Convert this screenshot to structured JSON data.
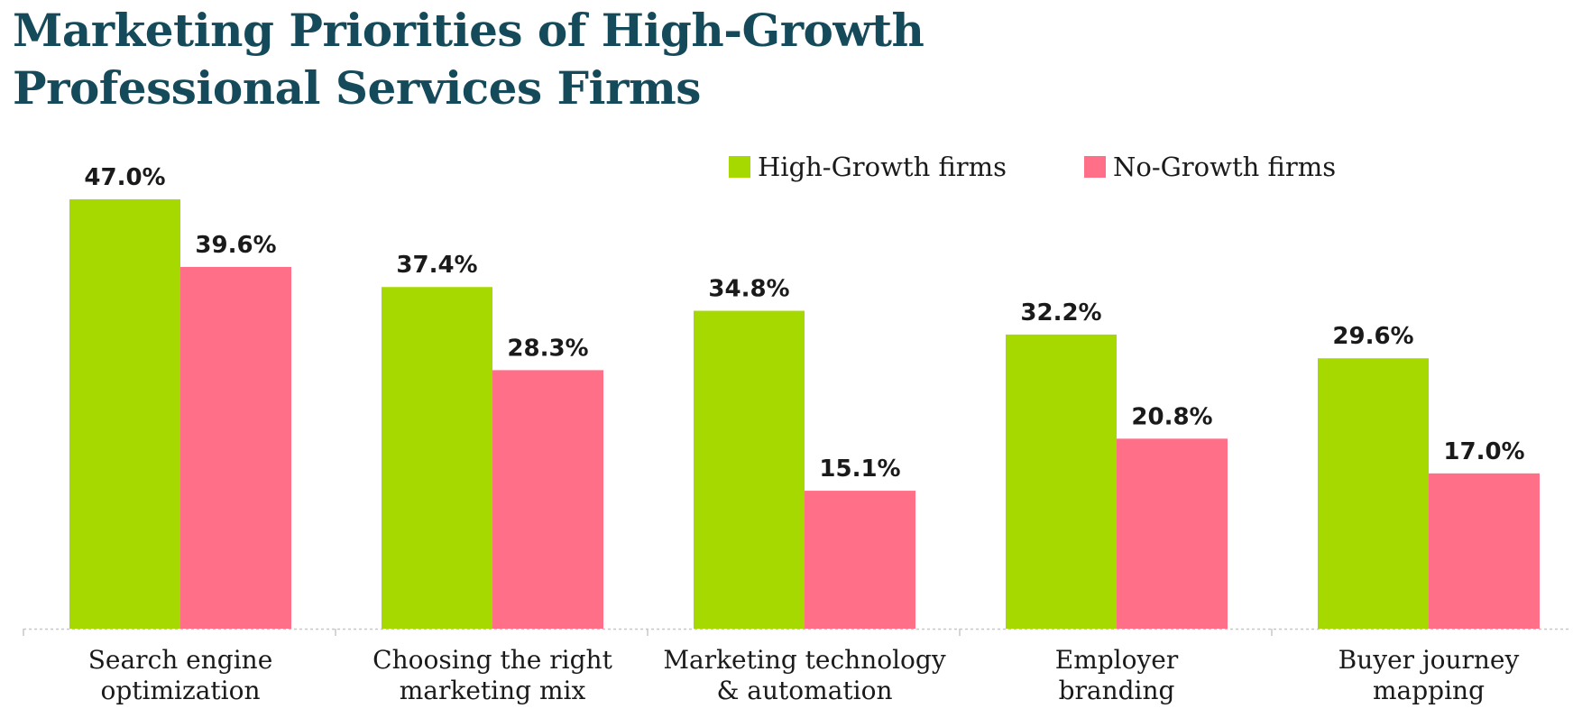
{
  "title": {
    "line1": "Marketing Priorities of High-Growth",
    "line2": "Professional Services Firms"
  },
  "chart_data": {
    "type": "bar",
    "title": "Marketing Priorities of High-Growth Professional Services Firms",
    "categories": [
      [
        "Search engine",
        "optimization"
      ],
      [
        "Choosing the right",
        "marketing mix"
      ],
      [
        "Marketing technology",
        "& automation"
      ],
      [
        "Employer",
        "branding"
      ],
      [
        "Buyer journey",
        "mapping"
      ]
    ],
    "series": [
      {
        "name": "High-Growth firms",
        "color": "#a6d900",
        "values": [
          47.0,
          37.4,
          34.8,
          32.2,
          29.6
        ],
        "labels": [
          "47.0%",
          "37.4%",
          "34.8%",
          "32.2%",
          "29.6%"
        ]
      },
      {
        "name": "No-Growth firms",
        "color": "#ff6f87",
        "values": [
          39.6,
          28.3,
          15.1,
          20.8,
          17.0
        ],
        "labels": [
          "39.6%",
          "28.3%",
          "15.1%",
          "20.8%",
          "17.0%"
        ]
      }
    ],
    "xlabel": "",
    "ylabel": "",
    "ylim": [
      0,
      47.0
    ],
    "grid": false,
    "legend": "top-right",
    "axis_color": "#c8c8c8"
  }
}
